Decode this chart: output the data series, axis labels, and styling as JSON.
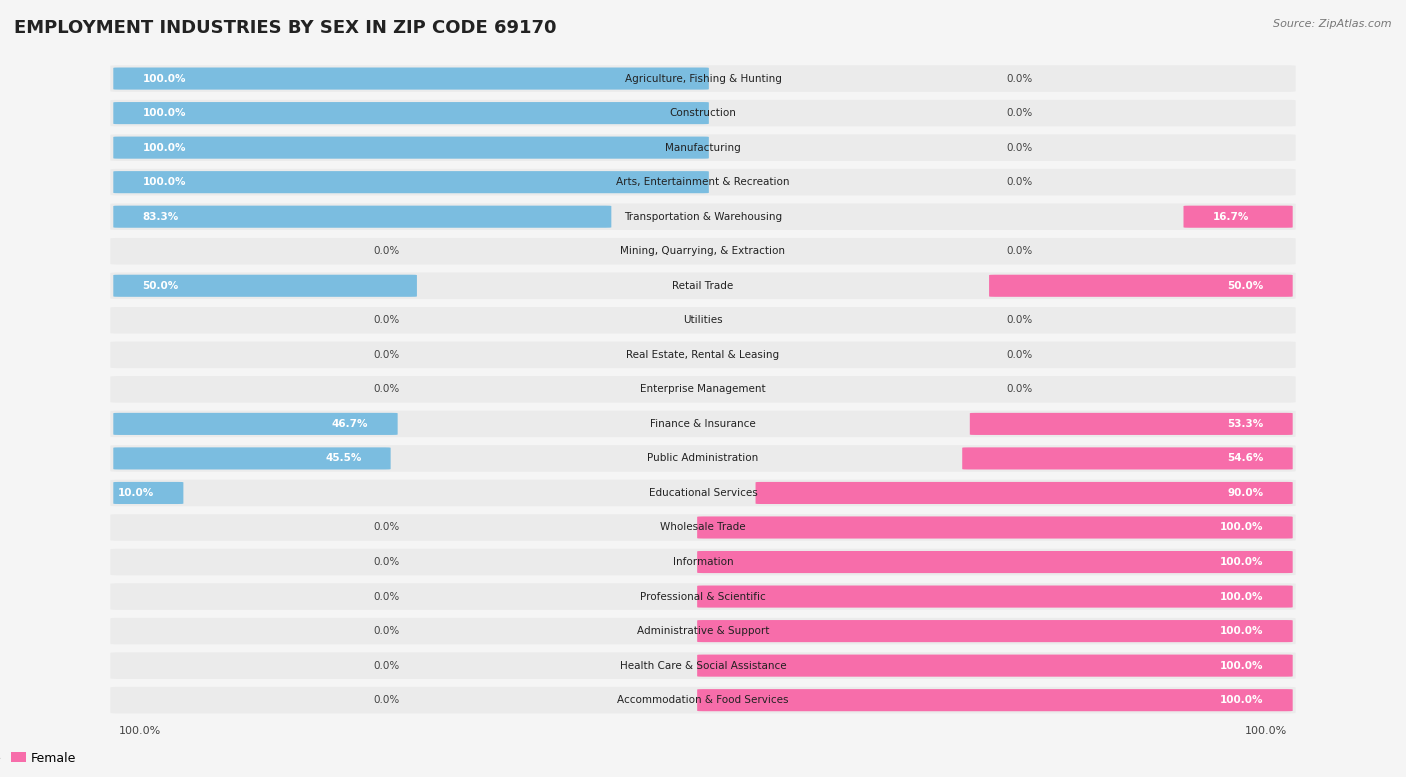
{
  "title": "EMPLOYMENT INDUSTRIES BY SEX IN ZIP CODE 69170",
  "source": "Source: ZipAtlas.com",
  "industries": [
    "Agriculture, Fishing & Hunting",
    "Construction",
    "Manufacturing",
    "Arts, Entertainment & Recreation",
    "Transportation & Warehousing",
    "Mining, Quarrying, & Extraction",
    "Retail Trade",
    "Utilities",
    "Real Estate, Rental & Leasing",
    "Enterprise Management",
    "Finance & Insurance",
    "Public Administration",
    "Educational Services",
    "Wholesale Trade",
    "Information",
    "Professional & Scientific",
    "Administrative & Support",
    "Health Care & Social Assistance",
    "Accommodation & Food Services"
  ],
  "male_pct": [
    100.0,
    100.0,
    100.0,
    100.0,
    83.3,
    0.0,
    50.0,
    0.0,
    0.0,
    0.0,
    46.7,
    45.5,
    10.0,
    0.0,
    0.0,
    0.0,
    0.0,
    0.0,
    0.0
  ],
  "female_pct": [
    0.0,
    0.0,
    0.0,
    0.0,
    16.7,
    0.0,
    50.0,
    0.0,
    0.0,
    0.0,
    53.3,
    54.6,
    90.0,
    100.0,
    100.0,
    100.0,
    100.0,
    100.0,
    100.0
  ],
  "male_color": "#7bbde0",
  "female_color": "#f76daa",
  "row_bg_color": "#ebebeb",
  "bg_color": "#f5f5f5",
  "title_fontsize": 13,
  "source_fontsize": 8,
  "label_fontsize": 7.5,
  "pct_fontsize": 7.5
}
